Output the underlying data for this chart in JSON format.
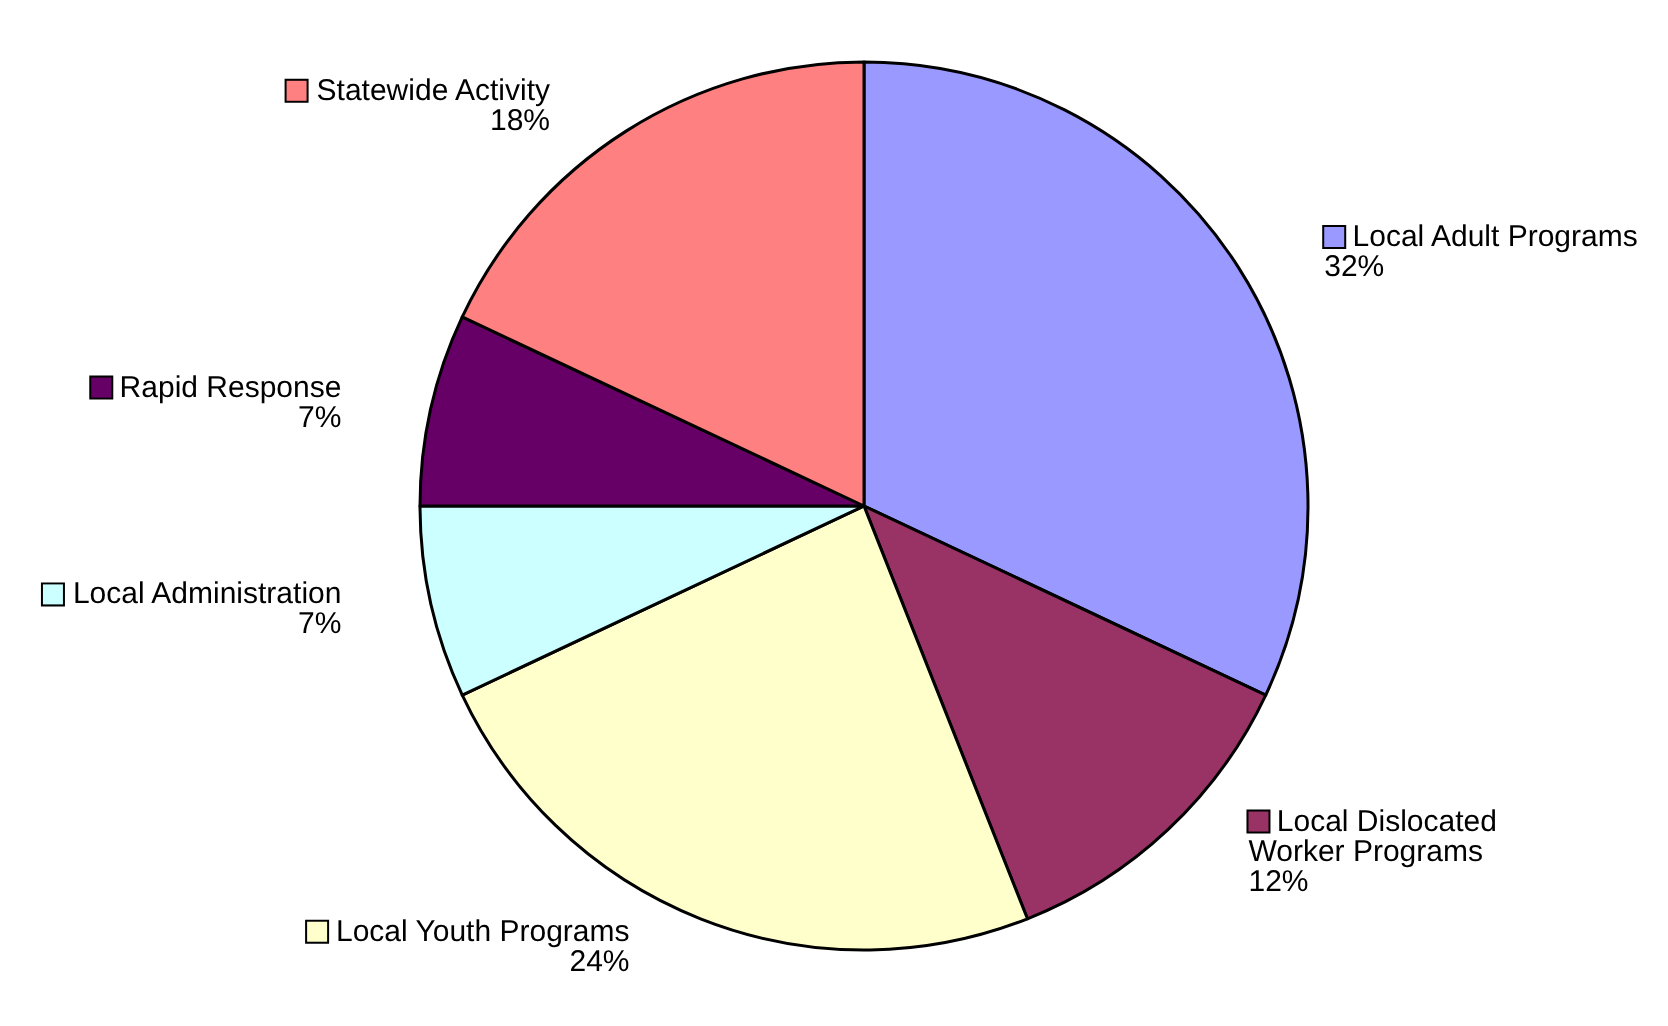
{
  "chart_data": {
    "type": "pie",
    "categories": [
      "Local Adult Programs",
      "Local Dislocated Worker Programs",
      "Local Youth Programs",
      "Local Administration",
      "Rapid Response",
      "Statewide Activity"
    ],
    "values": [
      32,
      12,
      24,
      7,
      7,
      18
    ],
    "value_labels": [
      "32%",
      "12%",
      "24%",
      "7%",
      "7%",
      "18%"
    ],
    "colors": [
      "#9999ff",
      "#993366",
      "#ffffcc",
      "#ccffff",
      "#660066",
      "#ff8080"
    ],
    "legend": true
  }
}
